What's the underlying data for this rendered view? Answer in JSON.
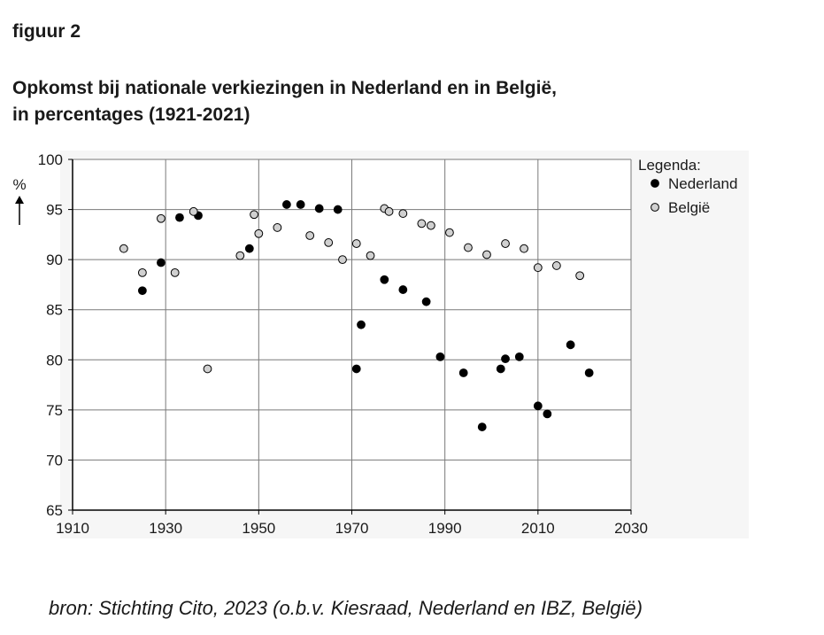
{
  "figure_label": "figuur 2",
  "title": {
    "line1": "Opkomst bij nationale verkiezingen in Nederland en in België,",
    "line2": "in percentages (1921-2021)"
  },
  "source": "bron: Stichting Cito, 2023 (o.b.v. Kiesraad, Nederland en IBZ, België)",
  "chart_data": {
    "type": "scatter",
    "title": "Opkomst bij nationale verkiezingen in Nederland en in België, in percentages (1921-2021)",
    "xlabel": "",
    "ylabel": "%",
    "xlim": [
      1910,
      2030
    ],
    "ylim": [
      65,
      100
    ],
    "x_ticks": [
      1910,
      1930,
      1950,
      1970,
      1990,
      2010,
      2030
    ],
    "y_ticks": [
      65,
      70,
      75,
      80,
      85,
      90,
      95,
      100
    ],
    "grid": true,
    "legend_title": "Legenda:",
    "legend_position": "top-right",
    "series": [
      {
        "name": "Nederland",
        "color": "#000000",
        "points": [
          {
            "x": 1925,
            "y": 86.9
          },
          {
            "x": 1929,
            "y": 89.7
          },
          {
            "x": 1933,
            "y": 94.2
          },
          {
            "x": 1937,
            "y": 94.4
          },
          {
            "x": 1948,
            "y": 91.1
          },
          {
            "x": 1956,
            "y": 95.5
          },
          {
            "x": 1959,
            "y": 95.5
          },
          {
            "x": 1963,
            "y": 95.1
          },
          {
            "x": 1967,
            "y": 95.0
          },
          {
            "x": 1971,
            "y": 79.1
          },
          {
            "x": 1972,
            "y": 83.5
          },
          {
            "x": 1977,
            "y": 88.0
          },
          {
            "x": 1981,
            "y": 87.0
          },
          {
            "x": 1986,
            "y": 85.8
          },
          {
            "x": 1989,
            "y": 80.3
          },
          {
            "x": 1994,
            "y": 78.7
          },
          {
            "x": 1998,
            "y": 73.3
          },
          {
            "x": 2002,
            "y": 79.1
          },
          {
            "x": 2003,
            "y": 80.1
          },
          {
            "x": 2006,
            "y": 80.3
          },
          {
            "x": 2010,
            "y": 75.4
          },
          {
            "x": 2012,
            "y": 74.6
          },
          {
            "x": 2017,
            "y": 81.5
          },
          {
            "x": 2021,
            "y": 78.7
          }
        ]
      },
      {
        "name": "België",
        "color": "#d0d0d0",
        "points": [
          {
            "x": 1921,
            "y": 91.1
          },
          {
            "x": 1925,
            "y": 88.7
          },
          {
            "x": 1929,
            "y": 94.1
          },
          {
            "x": 1932,
            "y": 88.7
          },
          {
            "x": 1936,
            "y": 94.8
          },
          {
            "x": 1939,
            "y": 79.1
          },
          {
            "x": 1946,
            "y": 90.4
          },
          {
            "x": 1949,
            "y": 94.5
          },
          {
            "x": 1950,
            "y": 92.6
          },
          {
            "x": 1954,
            "y": 93.2
          },
          {
            "x": 1961,
            "y": 92.4
          },
          {
            "x": 1965,
            "y": 91.7
          },
          {
            "x": 1968,
            "y": 90.0
          },
          {
            "x": 1971,
            "y": 91.6
          },
          {
            "x": 1974,
            "y": 90.4
          },
          {
            "x": 1977,
            "y": 95.1
          },
          {
            "x": 1978,
            "y": 94.8
          },
          {
            "x": 1981,
            "y": 94.6
          },
          {
            "x": 1985,
            "y": 93.6
          },
          {
            "x": 1987,
            "y": 93.4
          },
          {
            "x": 1991,
            "y": 92.7
          },
          {
            "x": 1995,
            "y": 91.2
          },
          {
            "x": 1999,
            "y": 90.5
          },
          {
            "x": 2003,
            "y": 91.6
          },
          {
            "x": 2007,
            "y": 91.1
          },
          {
            "x": 2010,
            "y": 89.2
          },
          {
            "x": 2014,
            "y": 89.4
          },
          {
            "x": 2019,
            "y": 88.4
          }
        ]
      }
    ]
  }
}
